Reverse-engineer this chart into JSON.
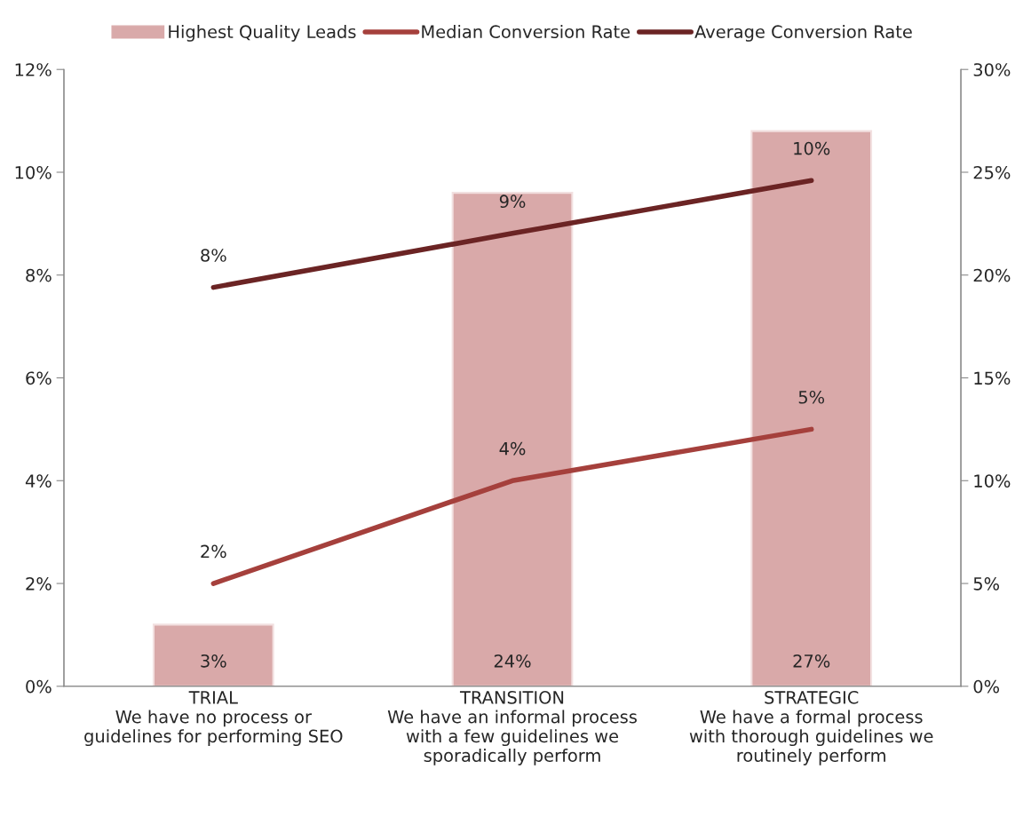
{
  "chart_data": {
    "type": "bar",
    "categories": [
      "TRIAL\nWe have no process or\nguidelines for performing SEO",
      "TRANSITION\nWe have an informal process\nwith a few guidelines we\nsporadically perform",
      "STRATEGIC\nWe have a formal process\nwith thorough guidelines we\nroutinely perform"
    ],
    "series": [
      {
        "name": "Highest Quality Leads",
        "axis": "y2",
        "color": "#d9a9a9",
        "values": [
          3,
          24,
          27
        ],
        "value_labels": [
          "3%",
          "24%",
          "27%"
        ]
      },
      {
        "name": "Median Conversion Rate",
        "type": "line",
        "color": "#a5403c",
        "values": [
          2,
          4,
          5
        ],
        "value_labels": [
          "2%",
          "4%",
          "5%"
        ]
      },
      {
        "name": "Average Conversion Rate",
        "type": "line",
        "color": "#6b2424",
        "values": [
          7.76,
          8.81,
          9.84
        ],
        "value_labels": [
          "8%",
          "9%",
          "10%"
        ]
      }
    ],
    "ylim": [
      0,
      12
    ],
    "yticks": [
      {
        "value": 0,
        "label": "0%"
      },
      {
        "value": 2,
        "label": "2%"
      },
      {
        "value": 4,
        "label": "4%"
      },
      {
        "value": 6,
        "label": "6%"
      },
      {
        "value": 8,
        "label": "8%"
      },
      {
        "value": 10,
        "label": "10%"
      },
      {
        "value": 12,
        "label": "12%"
      }
    ],
    "y2lim": [
      0,
      30
    ],
    "y2ticks": [
      {
        "value": 0,
        "label": "0%"
      },
      {
        "value": 5,
        "label": "5%"
      },
      {
        "value": 10,
        "label": "10%"
      },
      {
        "value": 15,
        "label": "15%"
      },
      {
        "value": 20,
        "label": "20%"
      },
      {
        "value": 25,
        "label": "25%"
      },
      {
        "value": 30,
        "label": "30%"
      }
    ],
    "legend": "top",
    "grid": false,
    "marker": "none",
    "line_style": "solid"
  }
}
